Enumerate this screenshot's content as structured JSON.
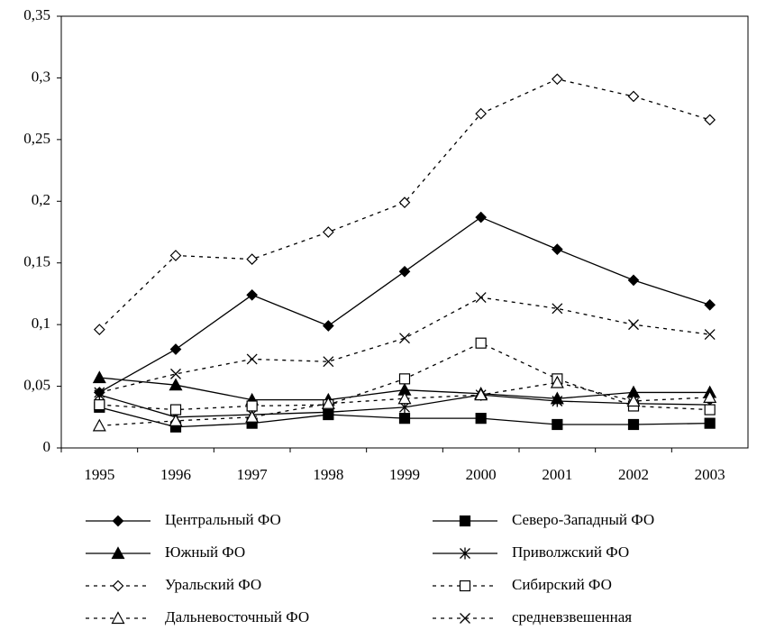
{
  "chart_data": {
    "type": "line",
    "categories": [
      "1995",
      "1996",
      "1997",
      "1998",
      "1999",
      "2000",
      "2001",
      "2002",
      "2003"
    ],
    "ylim": [
      0,
      0.35
    ],
    "yticks": [
      0,
      {
        "value": 0.05,
        "label": "0,05"
      },
      {
        "value": 0.1,
        "label": "0,1"
      },
      {
        "value": 0.15,
        "label": "0,15"
      },
      {
        "value": 0.2,
        "label": "0,2"
      },
      {
        "value": 0.25,
        "label": "0,25"
      },
      {
        "value": 0.3,
        "label": "0,3"
      },
      {
        "value": 0.35,
        "label": "0,35"
      }
    ],
    "grid": false,
    "series": [
      {
        "name": "Центральный ФО",
        "color": "#000000",
        "marker": "diamond-filled",
        "dash": "solid",
        "values": [
          0.045,
          0.08,
          0.124,
          0.099,
          0.143,
          0.187,
          0.161,
          0.136,
          0.116
        ]
      },
      {
        "name": "Северо-Западный ФО",
        "color": "#000000",
        "marker": "square-filled",
        "dash": "solid",
        "values": [
          0.033,
          0.017,
          0.02,
          0.027,
          0.024,
          0.024,
          0.019,
          0.019,
          0.02
        ]
      },
      {
        "name": "Южный ФО",
        "color": "#000000",
        "marker": "triangle-filled",
        "dash": "solid",
        "values": [
          0.057,
          0.051,
          0.039,
          0.039,
          0.047,
          0.044,
          0.04,
          0.045,
          0.045
        ]
      },
      {
        "name": "Приволжский ФО",
        "color": "#000000",
        "marker": "asterisk",
        "dash": "solid",
        "values": [
          0.043,
          0.025,
          0.027,
          0.029,
          0.033,
          0.043,
          0.038,
          0.036,
          0.035
        ]
      },
      {
        "name": "Уральский ФО",
        "color": "#000000",
        "marker": "diamond-open",
        "dash": "dotted",
        "values": [
          0.096,
          0.156,
          0.153,
          0.175,
          0.199,
          0.271,
          0.299,
          0.285,
          0.266
        ]
      },
      {
        "name": "Сибирский ФО",
        "color": "#000000",
        "marker": "square-open",
        "dash": "dotted",
        "values": [
          0.035,
          0.031,
          0.034,
          0.035,
          0.056,
          0.085,
          0.056,
          0.034,
          0.031
        ]
      },
      {
        "name": "Дальневосточный ФО",
        "color": "#000000",
        "marker": "triangle-open",
        "dash": "dotted",
        "values": [
          0.018,
          0.022,
          0.025,
          0.036,
          0.04,
          0.043,
          0.053,
          0.038,
          0.041
        ]
      },
      {
        "name": "средневзвешенная",
        "color": "#000000",
        "marker": "x",
        "dash": "dotted",
        "values": [
          0.045,
          0.06,
          0.072,
          0.07,
          0.089,
          0.122,
          0.113,
          0.1,
          0.092
        ]
      }
    ]
  }
}
